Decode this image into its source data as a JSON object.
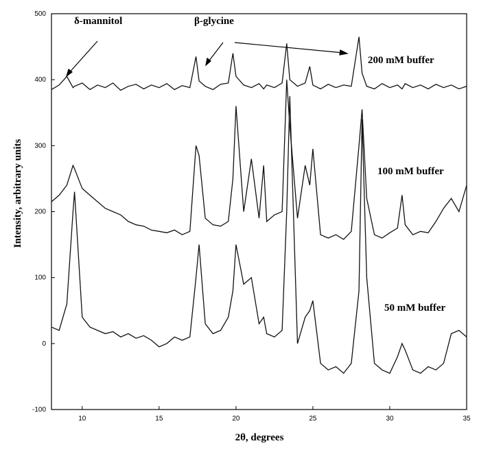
{
  "chart_data": {
    "type": "line",
    "x_label": "2θ,  degrees",
    "y_label": "Intensity, arbitrary units",
    "annotations": [
      "δ-mannitol",
      "β-glycine",
      "200 mM buffer",
      "100 mM buffer",
      "50 mM buffer"
    ],
    "x": [
      8,
      8.5,
      9,
      9.4,
      9.5,
      10,
      10.5,
      11,
      11.5,
      12,
      12.5,
      13,
      13.5,
      14,
      14.5,
      15,
      15.5,
      16,
      16.5,
      17,
      17.4,
      17.6,
      18,
      18.5,
      19,
      19.5,
      19.8,
      20,
      20.5,
      21,
      21.5,
      21.8,
      22,
      22.5,
      23,
      23.3,
      23.5,
      24,
      24.5,
      24.8,
      25,
      25.5,
      26,
      26.5,
      27,
      27.5,
      28,
      28.2,
      28.5,
      29,
      29.5,
      30,
      30.5,
      30.8,
      31,
      31.5,
      32,
      32.5,
      33,
      33.5,
      34,
      34.5,
      35
    ],
    "series": [
      {
        "color": "#111111",
        "values": [
          385,
          392,
          405,
          388,
          390,
          395,
          385,
          392,
          388,
          395,
          384,
          390,
          393,
          386,
          392,
          388,
          394,
          385,
          391,
          388,
          435,
          398,
          390,
          385,
          393,
          395,
          440,
          405,
          392,
          388,
          394,
          386,
          392,
          388,
          395,
          455,
          400,
          390,
          395,
          420,
          392,
          386,
          393,
          388,
          392,
          390,
          465,
          410,
          390,
          386,
          394,
          388,
          392,
          386,
          394,
          388,
          392,
          386,
          393,
          388,
          392,
          386,
          390
        ]
      },
      {
        "color": "#111111",
        "values": [
          215,
          225,
          240,
          270,
          265,
          235,
          225,
          215,
          205,
          200,
          195,
          185,
          180,
          178,
          172,
          170,
          168,
          172,
          165,
          170,
          300,
          285,
          190,
          180,
          178,
          185,
          250,
          360,
          200,
          280,
          190,
          270,
          185,
          195,
          200,
          400,
          330,
          190,
          270,
          240,
          295,
          165,
          160,
          165,
          158,
          170,
          300,
          355,
          220,
          165,
          160,
          168,
          175,
          225,
          180,
          165,
          170,
          168,
          185,
          205,
          220,
          200,
          240
        ]
      },
      {
        "color": "#111111",
        "values": [
          25,
          20,
          60,
          200,
          230,
          40,
          25,
          20,
          15,
          18,
          10,
          15,
          8,
          12,
          5,
          -5,
          0,
          10,
          5,
          10,
          100,
          150,
          30,
          15,
          20,
          40,
          80,
          150,
          90,
          100,
          30,
          40,
          15,
          10,
          20,
          200,
          375,
          0,
          40,
          50,
          65,
          -30,
          -40,
          -35,
          -45,
          -30,
          80,
          340,
          100,
          -30,
          -40,
          -45,
          -20,
          0,
          -10,
          -40,
          -45,
          -35,
          -40,
          -30,
          15,
          20,
          10
        ]
      }
    ],
    "xlim": [
      8,
      35
    ],
    "xticks": [
      10,
      15,
      20,
      25,
      30,
      35
    ],
    "ylim": [
      -100,
      500
    ],
    "yticks": [
      -100,
      0,
      100,
      200,
      300,
      400,
      500
    ]
  }
}
